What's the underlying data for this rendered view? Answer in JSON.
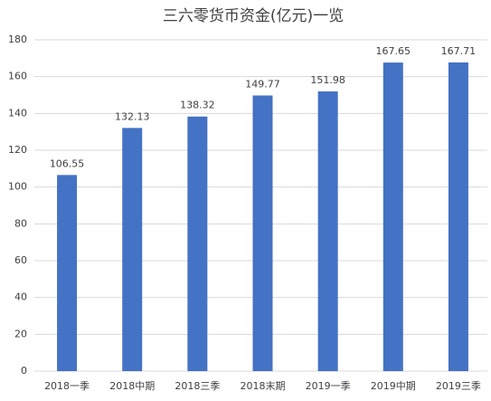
{
  "chart_data": {
    "type": "bar",
    "title": "三六零货币资金(亿元)一览",
    "categories": [
      "2018一季",
      "2018中期",
      "2018三季",
      "2018末期",
      "2019一季",
      "2019中期",
      "2019三季"
    ],
    "values": [
      106.55,
      132.13,
      138.32,
      149.77,
      151.98,
      167.65,
      167.71
    ],
    "color": "#4472c4",
    "ylim": [
      0,
      180
    ],
    "yticks": [
      0,
      20,
      40,
      60,
      80,
      100,
      120,
      140,
      160,
      180
    ],
    "grid": true
  }
}
